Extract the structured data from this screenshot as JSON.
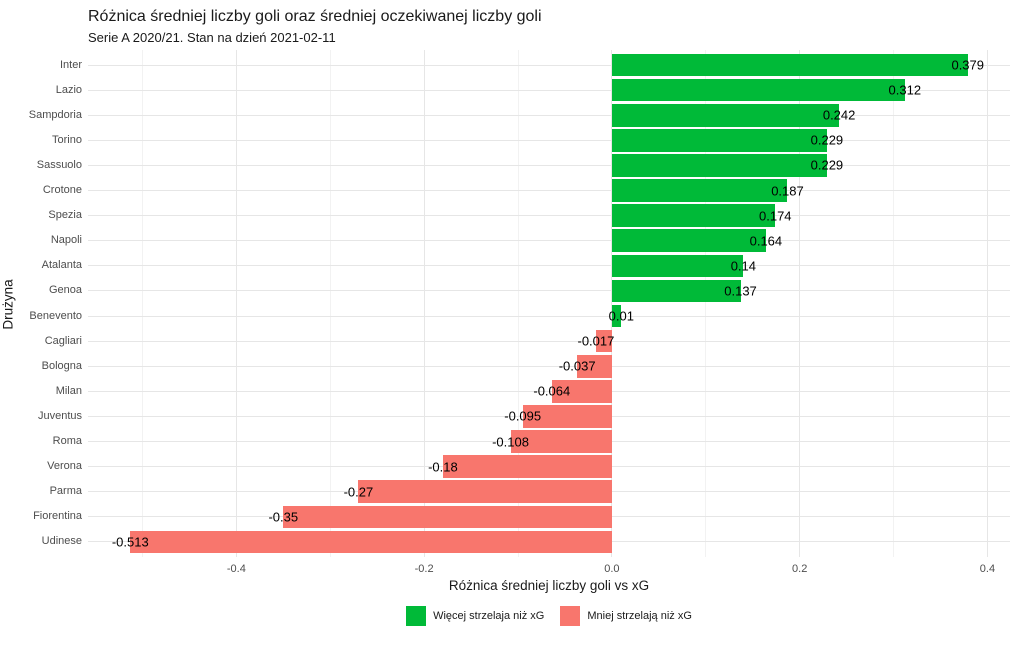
{
  "title": "Różnica średniej liczby goli oraz średniej oczekiwanej liczby goli",
  "subtitle": "Serie A 2020/21. Stan na dzień 2021-02-11",
  "chart_data": {
    "type": "bar",
    "orientation": "horizontal",
    "title": "Różnica średniej liczby goli oraz średniej oczekiwanej liczby goli",
    "subtitle": "Serie A 2020/21. Stan na dzień 2021-02-11",
    "xlabel": "Różnica średniej liczby goli vs xG",
    "ylabel": "Drużyna",
    "xlim": [
      -0.558,
      0.424
    ],
    "x_major_ticks": [
      -0.4,
      -0.2,
      0.0,
      0.2,
      0.4
    ],
    "x_tick_labels": [
      "-0.4",
      "-0.2",
      "0.0",
      "0.2",
      "0.4"
    ],
    "x_minor_ticks": [
      -0.5,
      -0.3,
      -0.1,
      0.1,
      0.3
    ],
    "grid": true,
    "categories": [
      "Inter",
      "Lazio",
      "Sampdoria",
      "Torino",
      "Sassuolo",
      "Crotone",
      "Spezia",
      "Napoli",
      "Atalanta",
      "Genoa",
      "Benevento",
      "Cagliari",
      "Bologna",
      "Milan",
      "Juventus",
      "Roma",
      "Verona",
      "Parma",
      "Fiorentina",
      "Udinese"
    ],
    "values": [
      0.379,
      0.312,
      0.242,
      0.229,
      0.229,
      0.187,
      0.174,
      0.164,
      0.14,
      0.137,
      0.01,
      -0.017,
      -0.037,
      -0.064,
      -0.095,
      -0.108,
      -0.18,
      -0.27,
      -0.35,
      -0.513
    ],
    "value_labels": [
      "0.379",
      "0.312",
      "0.242",
      "0.229",
      "0.229",
      "0.187",
      "0.174",
      "0.164",
      "0.14",
      "0.137",
      "0.01",
      "-0.017",
      "-0.037",
      "-0.064",
      "-0.095",
      "-0.108",
      "-0.18",
      "-0.27",
      "-0.35",
      "-0.513"
    ],
    "colors": {
      "positive": "#00BA38",
      "negative": "#F8766D"
    },
    "legend_position": "bottom",
    "legend": [
      {
        "label": "Więcej strzelaja niż xG",
        "color": "#00BA38"
      },
      {
        "label": "Mniej strzelają niż xG",
        "color": "#F8766D"
      }
    ]
  }
}
